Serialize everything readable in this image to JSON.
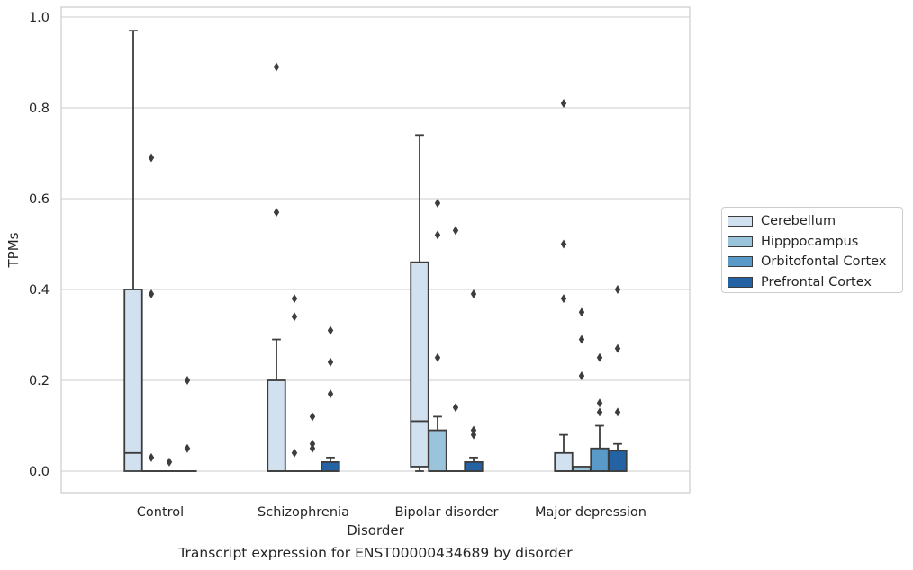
{
  "chart_data": {
    "type": "box",
    "xlabel": "Disorder",
    "ylabel": "TPMs",
    "ylim": [
      -0.047,
      1.02
    ],
    "yticks": [
      0.0,
      0.2,
      0.4,
      0.6,
      0.8,
      1.0
    ],
    "ytick_labels": [
      "0.0",
      "0.2",
      "0.4",
      "0.6",
      "0.8",
      "1.0"
    ],
    "grid": true,
    "legend_position": "right",
    "categories": [
      "Control",
      "Schizophrenia",
      "Bipolar disorder",
      "Major depression"
    ],
    "series": [
      {
        "name": "Cerebellum",
        "color": "#d2e1f0",
        "boxes": [
          {
            "q1": 0.0,
            "median": 0.04,
            "q3": 0.4,
            "whisker_low": 0.0,
            "whisker_high": 0.97,
            "outliers": []
          },
          {
            "q1": 0.0,
            "median": 0.0,
            "q3": 0.2,
            "whisker_low": 0.0,
            "whisker_high": 0.29,
            "outliers": [
              0.57,
              0.89
            ]
          },
          {
            "q1": 0.01,
            "median": 0.11,
            "q3": 0.46,
            "whisker_low": 0.0,
            "whisker_high": 0.74,
            "outliers": []
          },
          {
            "q1": 0.0,
            "median": 0.0,
            "q3": 0.04,
            "whisker_low": 0.0,
            "whisker_high": 0.08,
            "outliers": [
              0.38,
              0.5,
              0.81
            ]
          }
        ]
      },
      {
        "name": "Hipppocampus",
        "color": "#9ac3dc",
        "boxes": [
          {
            "q1": 0.0,
            "median": 0.0,
            "q3": 0.0,
            "whisker_low": 0.0,
            "whisker_high": 0.0,
            "outliers": [
              0.03,
              0.39,
              0.69
            ]
          },
          {
            "q1": 0.0,
            "median": 0.0,
            "q3": 0.0,
            "whisker_low": 0.0,
            "whisker_high": 0.0,
            "outliers": [
              0.04,
              0.34,
              0.38
            ]
          },
          {
            "q1": 0.0,
            "median": 0.0,
            "q3": 0.09,
            "whisker_low": 0.0,
            "whisker_high": 0.12,
            "outliers": [
              0.25,
              0.52,
              0.59
            ]
          },
          {
            "q1": 0.0,
            "median": 0.0,
            "q3": 0.01,
            "whisker_low": 0.0,
            "whisker_high": 0.01,
            "outliers": [
              0.21,
              0.29,
              0.35
            ]
          }
        ]
      },
      {
        "name": "Orbitofontal Cortex",
        "color": "#5a9ac8",
        "boxes": [
          {
            "q1": 0.0,
            "median": 0.0,
            "q3": 0.0,
            "whisker_low": 0.0,
            "whisker_high": 0.0,
            "outliers": [
              0.02
            ]
          },
          {
            "q1": 0.0,
            "median": 0.0,
            "q3": 0.0,
            "whisker_low": 0.0,
            "whisker_high": 0.0,
            "outliers": [
              0.05,
              0.06,
              0.12
            ]
          },
          {
            "q1": 0.0,
            "median": 0.0,
            "q3": 0.0,
            "whisker_low": 0.0,
            "whisker_high": 0.0,
            "outliers": [
              0.14,
              0.53
            ]
          },
          {
            "q1": 0.0,
            "median": 0.0,
            "q3": 0.05,
            "whisker_low": 0.0,
            "whisker_high": 0.1,
            "outliers": [
              0.13,
              0.15,
              0.25
            ]
          }
        ]
      },
      {
        "name": "Prefrontal Cortex",
        "color": "#2363a3",
        "boxes": [
          {
            "q1": 0.0,
            "median": 0.0,
            "q3": 0.0,
            "whisker_low": 0.0,
            "whisker_high": 0.0,
            "outliers": [
              0.05,
              0.2
            ]
          },
          {
            "q1": 0.0,
            "median": 0.0,
            "q3": 0.02,
            "whisker_low": 0.0,
            "whisker_high": 0.03,
            "outliers": [
              0.17,
              0.24,
              0.31
            ]
          },
          {
            "q1": 0.0,
            "median": 0.0,
            "q3": 0.02,
            "whisker_low": 0.0,
            "whisker_high": 0.03,
            "outliers": [
              0.08,
              0.09,
              0.39
            ]
          },
          {
            "q1": 0.0,
            "median": 0.0,
            "q3": 0.045,
            "whisker_low": 0.0,
            "whisker_high": 0.06,
            "outliers": [
              0.13,
              0.27,
              0.4
            ]
          }
        ]
      }
    ]
  },
  "caption": "Transcript expression for ENST00000434689 by disorder"
}
